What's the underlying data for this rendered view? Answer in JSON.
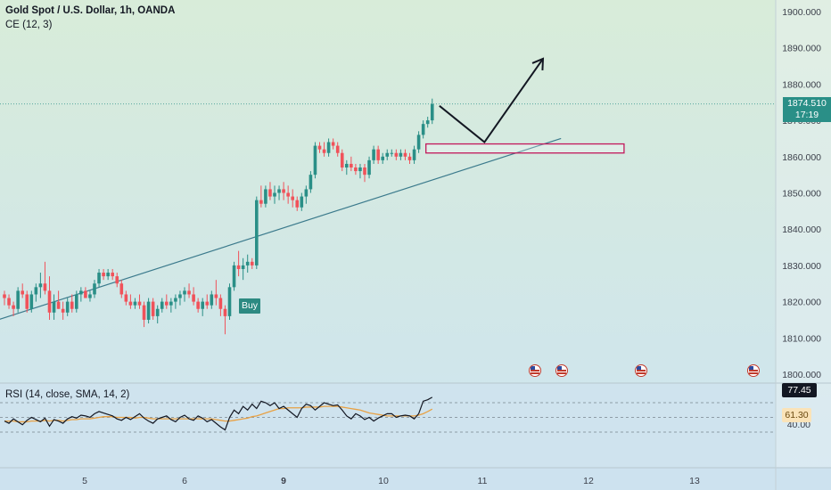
{
  "header": {
    "symbol_title": "Gold Spot / U.S. Dollar, 1h, OANDA",
    "indicator": "CE (12, 3)"
  },
  "rsi_panel": {
    "title": "RSI (14, close, SMA, 14, 2)",
    "rsi_value": "77.45",
    "rsi_ma_value": "61.30",
    "axis_label": "40.00"
  },
  "price_tag": {
    "price": "1874.510",
    "countdown": "17:19"
  },
  "buy_label": "Buy",
  "colors": {
    "bg_top": "#d8ecd9",
    "bg_bottom": "#cde4f1",
    "up": "#2a8f87",
    "down": "#f0525a",
    "trendline": "#3b7a8c",
    "rsi_line": "#131722",
    "rsi_ma": "#e8a144",
    "zone_border": "#c2185b",
    "arrow": "#131722"
  },
  "chart_data": {
    "type": "candlestick",
    "symbol": "Gold Spot / U.S. Dollar",
    "timeframe": "1h",
    "source": "OANDA",
    "y_ticks": [
      "1800.000",
      "1810.000",
      "1820.000",
      "1830.000",
      "1840.000",
      "1850.000",
      "1860.000",
      "1870.000",
      "1880.000",
      "1890.000",
      "1900.000"
    ],
    "ylim": [
      1798,
      1902
    ],
    "x_ticks": [
      "5",
      "6",
      "9",
      "10",
      "11",
      "12",
      "13"
    ],
    "last_price": 1874.51,
    "candles_ohlc": [
      [
        1822,
        1823,
        1819,
        1821
      ],
      [
        1821,
        1822,
        1818,
        1819
      ],
      [
        1819,
        1820,
        1816,
        1818
      ],
      [
        1818,
        1824,
        1817,
        1823
      ],
      [
        1823,
        1825,
        1821,
        1822
      ],
      [
        1822,
        1823,
        1817,
        1818
      ],
      [
        1818,
        1823,
        1817,
        1822
      ],
      [
        1822,
        1825,
        1820,
        1824
      ],
      [
        1824,
        1828,
        1821,
        1825
      ],
      [
        1825,
        1831,
        1822,
        1823
      ],
      [
        1823,
        1827,
        1815,
        1817
      ],
      [
        1817,
        1822,
        1815,
        1820
      ],
      [
        1820,
        1823,
        1818,
        1818
      ],
      [
        1818,
        1820,
        1815,
        1817
      ],
      [
        1817,
        1821,
        1816,
        1820
      ],
      [
        1820,
        1822,
        1817,
        1818
      ],
      [
        1818,
        1823,
        1817,
        1822
      ],
      [
        1822,
        1824,
        1820,
        1823
      ],
      [
        1823,
        1824,
        1821,
        1821
      ],
      [
        1821,
        1823,
        1820,
        1822
      ],
      [
        1822,
        1826,
        1821,
        1825
      ],
      [
        1825,
        1829,
        1824,
        1828
      ],
      [
        1828,
        1829,
        1826,
        1827
      ],
      [
        1827,
        1829,
        1826,
        1828
      ],
      [
        1828,
        1829,
        1826,
        1827
      ],
      [
        1827,
        1828,
        1824,
        1825
      ],
      [
        1825,
        1826,
        1821,
        1822
      ],
      [
        1822,
        1823,
        1819,
        1820
      ],
      [
        1820,
        1822,
        1818,
        1819
      ],
      [
        1819,
        1821,
        1818,
        1820
      ],
      [
        1820,
        1822,
        1818,
        1819
      ],
      [
        1819,
        1820,
        1813,
        1815
      ],
      [
        1815,
        1821,
        1814,
        1820
      ],
      [
        1820,
        1821,
        1815,
        1816
      ],
      [
        1816,
        1819,
        1814,
        1818
      ],
      [
        1818,
        1821,
        1817,
        1820
      ],
      [
        1820,
        1822,
        1818,
        1819
      ],
      [
        1819,
        1821,
        1817,
        1820
      ],
      [
        1820,
        1822,
        1818,
        1821
      ],
      [
        1821,
        1823,
        1819,
        1822
      ],
      [
        1822,
        1824,
        1820,
        1823
      ],
      [
        1823,
        1825,
        1821,
        1822
      ],
      [
        1822,
        1824,
        1819,
        1820
      ],
      [
        1820,
        1821,
        1817,
        1818
      ],
      [
        1818,
        1821,
        1816,
        1820
      ],
      [
        1820,
        1822,
        1818,
        1819
      ],
      [
        1819,
        1823,
        1818,
        1822
      ],
      [
        1822,
        1826,
        1819,
        1821
      ],
      [
        1821,
        1822,
        1816,
        1818
      ],
      [
        1818,
        1819,
        1811,
        1816
      ],
      [
        1816,
        1825,
        1815,
        1824
      ],
      [
        1824,
        1831,
        1823,
        1830
      ],
      [
        1830,
        1834,
        1827,
        1829
      ],
      [
        1829,
        1832,
        1826,
        1830
      ],
      [
        1830,
        1833,
        1828,
        1831
      ],
      [
        1831,
        1832,
        1829,
        1830
      ],
      [
        1830,
        1849,
        1829,
        1848
      ],
      [
        1848,
        1852,
        1846,
        1847
      ],
      [
        1847,
        1852,
        1846,
        1851
      ],
      [
        1851,
        1853,
        1848,
        1849
      ],
      [
        1849,
        1852,
        1847,
        1850
      ],
      [
        1850,
        1852,
        1848,
        1851
      ],
      [
        1851,
        1853,
        1848,
        1850
      ],
      [
        1850,
        1852,
        1847,
        1849
      ],
      [
        1849,
        1851,
        1846,
        1848
      ],
      [
        1848,
        1849,
        1845,
        1846
      ],
      [
        1846,
        1850,
        1845,
        1849
      ],
      [
        1849,
        1852,
        1847,
        1851
      ],
      [
        1851,
        1856,
        1850,
        1855
      ],
      [
        1855,
        1864,
        1854,
        1863
      ],
      [
        1863,
        1864,
        1861,
        1862
      ],
      [
        1862,
        1864,
        1860,
        1861
      ],
      [
        1861,
        1865,
        1860,
        1864
      ],
      [
        1864,
        1865,
        1862,
        1863
      ],
      [
        1863,
        1864,
        1860,
        1861
      ],
      [
        1861,
        1862,
        1856,
        1857
      ],
      [
        1857,
        1859,
        1855,
        1858
      ],
      [
        1858,
        1860,
        1856,
        1857
      ],
      [
        1857,
        1858,
        1855,
        1856
      ],
      [
        1856,
        1858,
        1854,
        1857
      ],
      [
        1857,
        1858,
        1853,
        1855
      ],
      [
        1855,
        1860,
        1854,
        1859
      ],
      [
        1859,
        1863,
        1858,
        1862
      ],
      [
        1862,
        1863,
        1858,
        1859
      ],
      [
        1859,
        1861,
        1858,
        1860
      ],
      [
        1860,
        1862,
        1859,
        1861
      ],
      [
        1861,
        1862,
        1860,
        1861
      ],
      [
        1861,
        1862,
        1859,
        1860
      ],
      [
        1860,
        1862,
        1859,
        1861
      ],
      [
        1861,
        1862,
        1859,
        1860
      ],
      [
        1860,
        1861,
        1858,
        1859
      ],
      [
        1859,
        1863,
        1858,
        1862
      ],
      [
        1862,
        1867,
        1861,
        1866
      ],
      [
        1866,
        1870,
        1865,
        1869
      ],
      [
        1869,
        1871,
        1868,
        1870
      ],
      [
        1870,
        1876,
        1869,
        1874.51
      ]
    ],
    "trendline": {
      "from": [
        -1,
        1815
      ],
      "to": [
        124,
        1865
      ]
    },
    "zone": {
      "from_bar": 94,
      "to_bar": 138,
      "top": 1863.5,
      "bottom": 1861
    },
    "projection_arrow": [
      [
        97,
        1874
      ],
      [
        107,
        1864
      ],
      [
        120,
        1887
      ]
    ],
    "rsi": {
      "ylim": [
        25,
        100
      ],
      "levels": [
        70,
        50,
        30
      ],
      "rsi_values": [
        45,
        42,
        48,
        44,
        40,
        46,
        50,
        47,
        44,
        49,
        38,
        47,
        45,
        42,
        48,
        51,
        49,
        53,
        52,
        50,
        55,
        58,
        56,
        54,
        52,
        48,
        46,
        50,
        47,
        51,
        55,
        49,
        45,
        42,
        48,
        50,
        52,
        47,
        44,
        50,
        53,
        48,
        46,
        52,
        49,
        44,
        47,
        42,
        37,
        33,
        50,
        60,
        55,
        65,
        60,
        68,
        62,
        72,
        70,
        66,
        70,
        62,
        65,
        60,
        55,
        50,
        62,
        68,
        66,
        60,
        65,
        70,
        68,
        66,
        67,
        60,
        52,
        48,
        55,
        52,
        47,
        50,
        45,
        49,
        52,
        55,
        55,
        50,
        52,
        53,
        52,
        48,
        55,
        72,
        74,
        77.45
      ],
      "ma_values": [
        45,
        45,
        45,
        44,
        44,
        44,
        45,
        45,
        45,
        46,
        45,
        46,
        46,
        45,
        46,
        47,
        47,
        48,
        48,
        48,
        49,
        50,
        51,
        51,
        51,
        50,
        50,
        50,
        50,
        49,
        50,
        50,
        49,
        48,
        48,
        48,
        48,
        48,
        48,
        48,
        48,
        48,
        48,
        48,
        48,
        48,
        48,
        47,
        46,
        45,
        45,
        46,
        47,
        48,
        49,
        51,
        52,
        54,
        56,
        58,
        60,
        62,
        62,
        63,
        63,
        63,
        63,
        64,
        64,
        64,
        64,
        65,
        65,
        65,
        65,
        64,
        63,
        62,
        61,
        60,
        58,
        56,
        55,
        54,
        53,
        52,
        52,
        52,
        52,
        52,
        52,
        52,
        53,
        55,
        58,
        61.3
      ]
    }
  }
}
